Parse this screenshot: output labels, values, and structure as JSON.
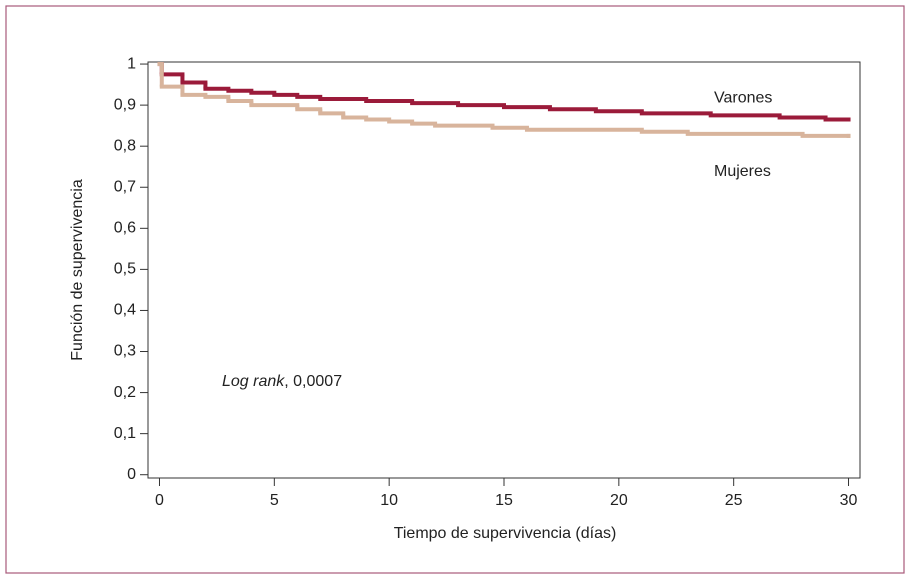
{
  "chart_data": {
    "type": "step",
    "x_label": "Tiempo de supervivencia (días)",
    "y_label": "Función de supervivencia",
    "annotation": {
      "italic": "Log rank",
      "text": ", 0,0007"
    },
    "xlim": [
      -0.5,
      30.5
    ],
    "ylim": [
      -0.008,
      1.005
    ],
    "xticks": [
      0,
      5,
      10,
      15,
      20,
      25,
      30
    ],
    "yticks": [
      0,
      {
        "value": 0.1,
        "label": "0,1"
      },
      {
        "value": 0.2,
        "label": "0,2"
      },
      {
        "value": 0.3,
        "label": "0,3"
      },
      {
        "value": 0.4,
        "label": "0,4"
      },
      {
        "value": 0.5,
        "label": "0,5"
      },
      {
        "value": 0.6,
        "label": "0,6"
      },
      {
        "value": 0.7,
        "label": "0,7"
      },
      {
        "value": 0.8,
        "label": "0,8"
      },
      {
        "value": 0.9,
        "label": "0,9"
      },
      1
    ],
    "series": [
      {
        "name": "Varones",
        "color": "#9b1b3a",
        "x": [
          0,
          0.1,
          1,
          2,
          3,
          4,
          5,
          6,
          7,
          9,
          11,
          13,
          15,
          17,
          19,
          21,
          24,
          27,
          29,
          30
        ],
        "values": [
          1,
          0.975,
          0.955,
          0.94,
          0.935,
          0.93,
          0.925,
          0.92,
          0.915,
          0.91,
          0.905,
          0.9,
          0.895,
          0.89,
          0.885,
          0.88,
          0.875,
          0.87,
          0.865,
          0.865
        ]
      },
      {
        "name": "Mujeres",
        "color": "#d8b49c",
        "x": [
          0,
          0.1,
          1,
          2,
          3,
          4,
          6,
          7,
          8,
          9,
          10,
          11,
          12,
          14.5,
          16,
          21,
          23,
          28,
          30
        ],
        "values": [
          1,
          0.945,
          0.925,
          0.92,
          0.91,
          0.9,
          0.89,
          0.88,
          0.87,
          0.865,
          0.86,
          0.855,
          0.85,
          0.845,
          0.84,
          0.835,
          0.83,
          0.825,
          0.825
        ]
      }
    ]
  }
}
